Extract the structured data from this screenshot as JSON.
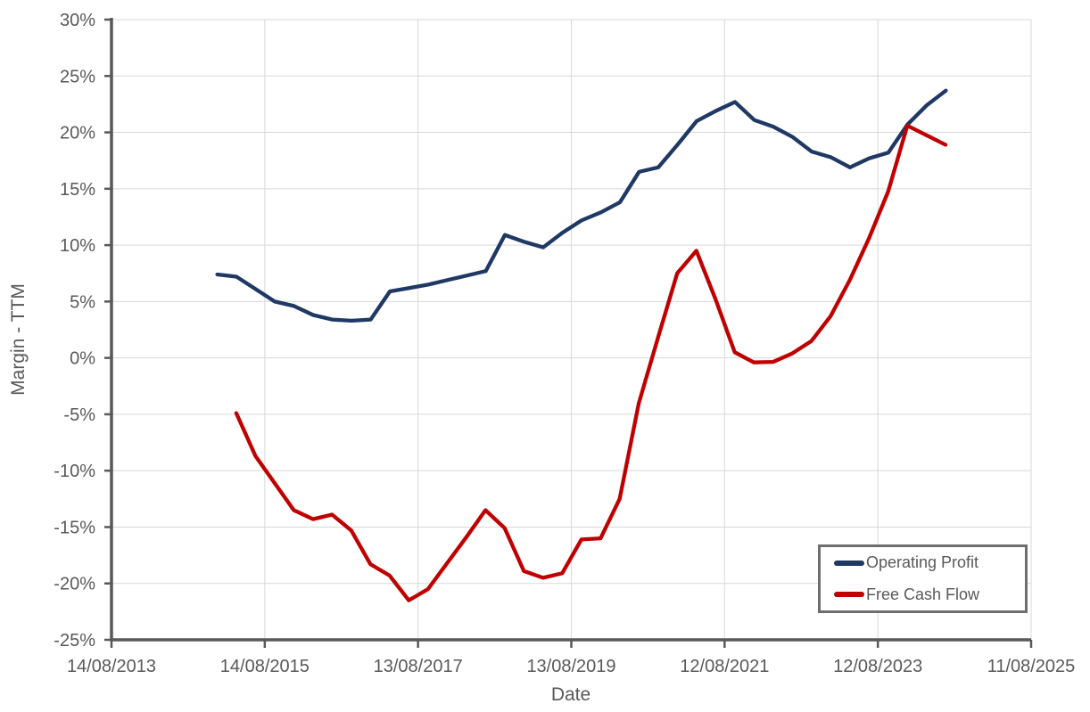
{
  "chart_data": {
    "type": "line",
    "title": "",
    "xlabel": "Date",
    "ylabel": "Margin - TTM",
    "grid": true,
    "legend_position": "bottom-right",
    "ylim": [
      -25,
      30
    ],
    "y_ticks": [
      30,
      25,
      20,
      15,
      10,
      5,
      0,
      -5,
      -10,
      -15,
      -20,
      -25
    ],
    "y_tick_labels": [
      "30%",
      "25%",
      "20%",
      "15%",
      "10%",
      "5%",
      "0%",
      "-5%",
      "-10%",
      "-15%",
      "-20%",
      "-25%"
    ],
    "x_axis": {
      "tick_labels": [
        "14/08/2013",
        "14/08/2015",
        "13/08/2017",
        "13/08/2019",
        "12/08/2021",
        "12/08/2023",
        "11/08/2025"
      ],
      "start_decimal_year": 2013.619,
      "end_decimal_year": 2025.611
    },
    "axis_color": "#595959",
    "grid_color": "#d9d9d9",
    "series": [
      {
        "name": "Operating Profit",
        "color": "#1f3864",
        "x_start_decimal_year": 2014.999,
        "x_step_years": 0.25,
        "values": [
          7.4,
          7.2,
          6.1,
          5.0,
          4.6,
          3.8,
          3.4,
          3.3,
          3.4,
          5.9,
          6.2,
          6.5,
          6.9,
          7.3,
          7.7,
          10.9,
          10.3,
          9.8,
          11.1,
          12.2,
          12.9,
          13.8,
          16.5,
          16.9,
          18.9,
          21.0,
          21.9,
          22.7,
          21.1,
          20.5,
          19.6,
          18.3,
          17.8,
          16.9,
          17.7,
          18.2,
          20.7,
          22.4,
          23.7
        ]
      },
      {
        "name": "Free Cash Flow",
        "color": "#c00000",
        "x_start_decimal_year": 2015.246,
        "x_step_years": 0.25,
        "values": [
          -4.9,
          -8.7,
          -11.1,
          -13.5,
          -14.3,
          -13.9,
          -15.3,
          -18.3,
          -19.3,
          -21.5,
          -20.5,
          -18.2,
          -15.9,
          -13.5,
          -15.1,
          -18.9,
          -19.5,
          -19.1,
          -16.1,
          -16.0,
          -12.5,
          -4.0,
          1.8,
          7.5,
          9.5,
          5.2,
          0.5,
          -0.4,
          -0.35,
          0.4,
          1.5,
          3.7,
          6.9,
          10.6,
          14.75,
          20.6,
          19.75,
          18.9
        ]
      }
    ]
  }
}
